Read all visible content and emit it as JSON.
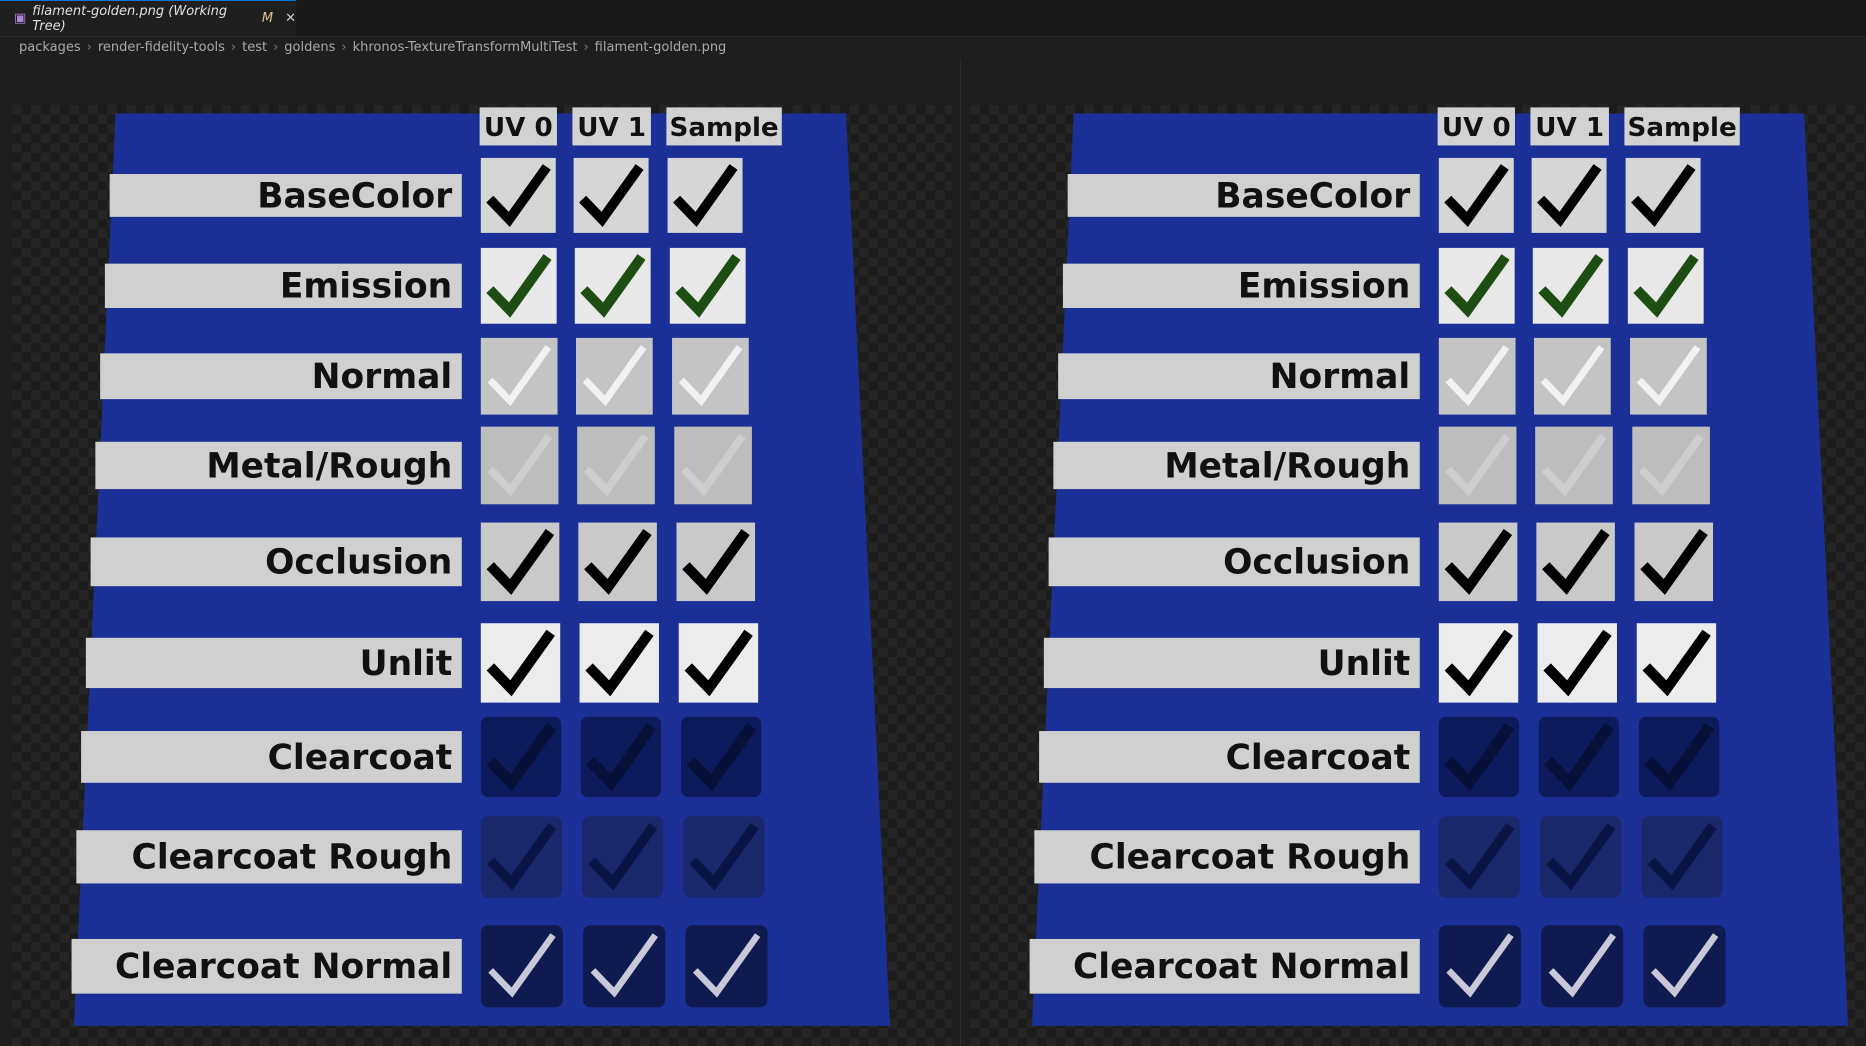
{
  "tab": {
    "title": "filament-golden.png (Working Tree)",
    "status": "M"
  },
  "breadcrumbs": [
    "packages",
    "render-fidelity-tools",
    "test",
    "goldens",
    "khronos-TextureTransformMultiTest",
    "filament-golden.png"
  ],
  "image": {
    "columns": [
      "UV 0",
      "UV 1",
      "Sample"
    ],
    "rows": [
      "BaseColor",
      "Emission",
      "Normal",
      "Metal/Rough",
      "Occlusion",
      "Unlit",
      "Clearcoat",
      "Clearcoat Rough",
      "Clearcoat Normal"
    ]
  }
}
